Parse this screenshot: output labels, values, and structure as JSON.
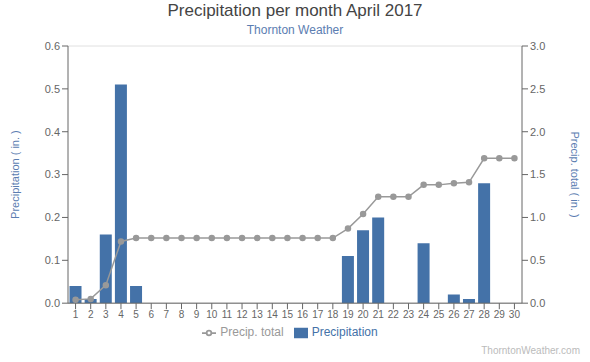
{
  "chart_data": {
    "type": "bar",
    "title": "Precipitation per month April 2017",
    "subtitle": "Thornton Weather",
    "annotations": [
      "ThorntonWeather.com"
    ],
    "ylabel": "Precipitation ( in. )",
    "y2label": "Precip. total ( in. )",
    "categories": [
      1,
      2,
      3,
      4,
      5,
      6,
      7,
      8,
      9,
      10,
      11,
      12,
      13,
      14,
      15,
      16,
      17,
      18,
      19,
      20,
      21,
      22,
      23,
      24,
      25,
      26,
      27,
      28,
      29,
      30
    ],
    "series": [
      {
        "name": "Precipitation",
        "type": "bar",
        "color": "#4472a8",
        "values": [
          0.04,
          0.01,
          0.16,
          0.51,
          0.04,
          0.0,
          0.0,
          0.0,
          0.0,
          0.0,
          0.0,
          0.0,
          0.0,
          0.0,
          0.0,
          0.0,
          0.0,
          0.0,
          0.11,
          0.17,
          0.2,
          0.0,
          0.0,
          0.14,
          0.0,
          0.02,
          0.01,
          0.28,
          0.0,
          0.0
        ]
      },
      {
        "name": "Precip. total",
        "type": "line",
        "axis": "y2",
        "color": "#999999",
        "marker": "circle",
        "values": [
          0.04,
          0.05,
          0.21,
          0.72,
          0.76,
          0.76,
          0.76,
          0.76,
          0.76,
          0.76,
          0.76,
          0.76,
          0.76,
          0.76,
          0.76,
          0.76,
          0.76,
          0.76,
          0.87,
          1.04,
          1.24,
          1.24,
          1.24,
          1.38,
          1.38,
          1.4,
          1.41,
          1.69,
          1.69,
          1.69
        ]
      }
    ],
    "ylim": [
      0,
      0.6
    ],
    "yticks": [
      {
        "value": 0,
        "label": "0.0"
      },
      0.1,
      0.2,
      0.3,
      0.4,
      0.5,
      0.6
    ],
    "y2lim": [
      0,
      3.0
    ],
    "y2ticks": [
      {
        "value": 0,
        "label": "0.0"
      },
      0.5,
      {
        "value": 1,
        "label": "1.0"
      },
      1.5,
      {
        "value": 2,
        "label": "2.0"
      },
      2.5,
      {
        "value": 3,
        "label": "3.0"
      }
    ],
    "grid": true,
    "legend": "bottom"
  }
}
